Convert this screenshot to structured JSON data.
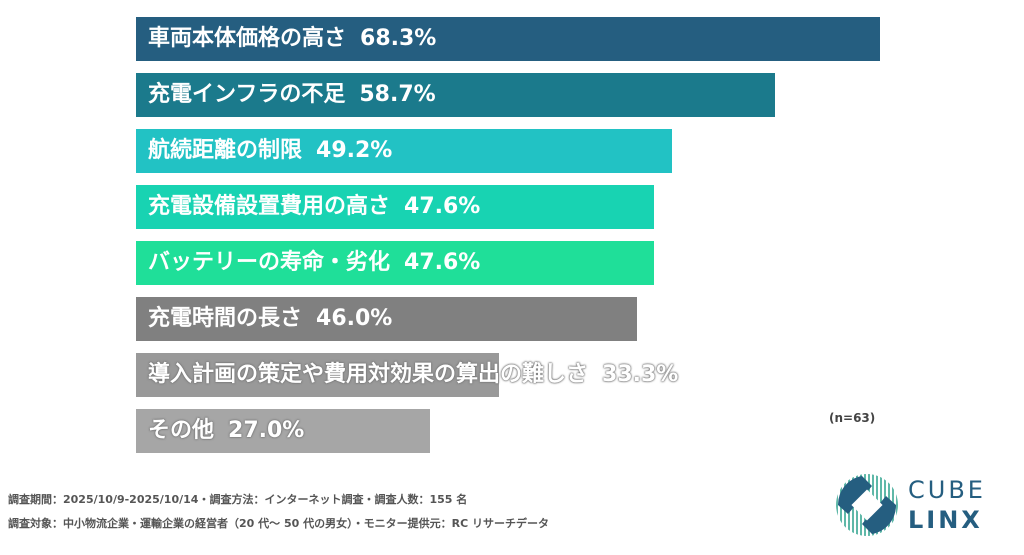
{
  "chart_data": {
    "type": "bar",
    "orientation": "horizontal",
    "categories": [
      "車両本体価格の高さ",
      "充電インフラの不足",
      "航続距離の制限",
      "充電設備設置費用の高さ",
      "バッテリーの寿命・劣化",
      "充電時間の長さ",
      "導入計画の策定や費用対効果の算出の難しさ",
      "その他"
    ],
    "values": [
      68.3,
      58.7,
      49.2,
      47.6,
      47.6,
      46.0,
      33.3,
      27.0
    ],
    "value_labels": [
      "68.3%",
      "58.7%",
      "49.2%",
      "47.6%",
      "47.6%",
      "46.0%",
      "33.3%",
      "27.0%"
    ],
    "colors": [
      "#255e80",
      "#1b7a8c",
      "#22c2c4",
      "#18d3b2",
      "#1fdf99",
      "#808080",
      "#999999",
      "#a6a6a6"
    ],
    "unit": "%",
    "grid": false,
    "sample_note": "(n=63)"
  },
  "footer": {
    "line1": "調査期間：2025/10/9-2025/10/14・調査方法：インターネット調査・調査人数：155 名",
    "line2": "調査対象：中小物流企業・運輸企業の経営者（20 代～ 50 代の男女）・モニター提供元：RC リサーチデータ"
  },
  "logo": {
    "line1": "CUBE",
    "line2": "LINX",
    "color": "#255e80",
    "accent": "#5fb8a8"
  }
}
